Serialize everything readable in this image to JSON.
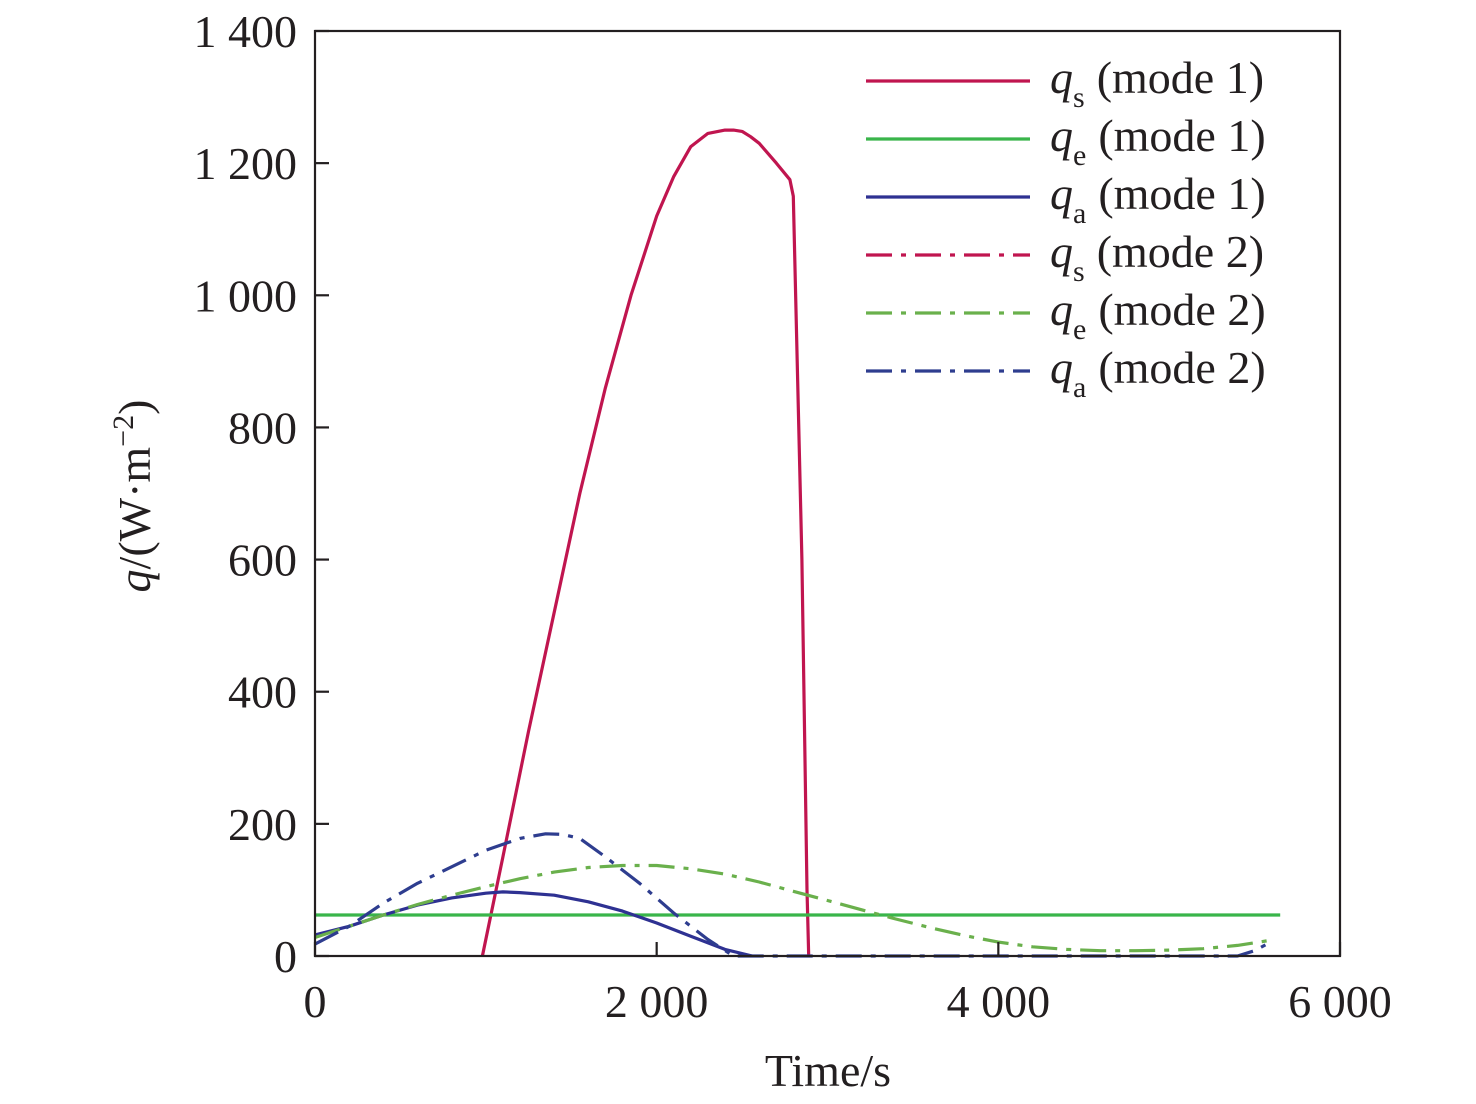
{
  "chart_data": {
    "type": "line",
    "xlabel": "Time/s",
    "ylabel": {
      "symbol": "q",
      "unit": "/(W·m",
      "exp": "−2",
      "close": ")"
    },
    "xlim": [
      0,
      6000
    ],
    "ylim": [
      0,
      1400
    ],
    "x_ticks": [
      0,
      2000,
      4000,
      6000
    ],
    "x_tick_labels": [
      "0",
      "2 000",
      "4 000",
      "6 000"
    ],
    "y_ticks": [
      0,
      200,
      400,
      600,
      800,
      1000,
      1200,
      1400
    ],
    "y_tick_labels": [
      "0",
      "200",
      "400",
      "600",
      "800",
      "1 000",
      "1 200",
      "1 400"
    ],
    "grid": false,
    "legend_position": "top-right",
    "series": [
      {
        "name": "qs (mode 1)",
        "symbol": "q",
        "sub": "s",
        "suffix": "(mode 1)",
        "color": "#c0154f",
        "style": "solid",
        "x": [
          980,
          1100,
          1250,
          1400,
          1550,
          1700,
          1850,
          2000,
          2100,
          2200,
          2300,
          2400,
          2450,
          2500,
          2550,
          2600,
          2700,
          2780,
          2800,
          2850,
          2880,
          2890
        ],
        "y": [
          0,
          150,
          340,
          520,
          700,
          860,
          1000,
          1120,
          1180,
          1225,
          1245,
          1250,
          1250,
          1248,
          1240,
          1230,
          1200,
          1175,
          1150,
          600,
          100,
          0
        ]
      },
      {
        "name": "qe (mode 1)",
        "symbol": "q",
        "sub": "e",
        "suffix": "(mode 1)",
        "color": "#39b54a",
        "style": "solid",
        "x": [
          0,
          5650
        ],
        "y": [
          62,
          62
        ]
      },
      {
        "name": "qa (mode 1)",
        "symbol": "q",
        "sub": "a",
        "suffix": "(mode 1)",
        "color": "#2e3192",
        "style": "solid",
        "x": [
          0,
          200,
          400,
          600,
          800,
          1000,
          1100,
          1200,
          1400,
          1600,
          1800,
          2000,
          2200,
          2400,
          2560
        ],
        "y": [
          32,
          45,
          62,
          77,
          88,
          95,
          97,
          96,
          92,
          82,
          68,
          50,
          30,
          10,
          0
        ]
      },
      {
        "name": "qs (mode 2)",
        "symbol": "q",
        "sub": "s",
        "suffix": "(mode 2)",
        "color": "#c0154f",
        "style": "dashdot",
        "x": [],
        "y": []
      },
      {
        "name": "qe (mode 2)",
        "symbol": "q",
        "sub": "e",
        "suffix": "(mode 2)",
        "color": "#6ab04c",
        "style": "dashdot",
        "x": [
          0,
          200,
          400,
          600,
          800,
          1000,
          1200,
          1400,
          1600,
          1800,
          2000,
          2200,
          2400,
          2600,
          2800,
          3000,
          3200,
          3400,
          3600,
          3800,
          4000,
          4200,
          4400,
          4600,
          4800,
          5000,
          5200,
          5400,
          5600
        ],
        "y": [
          28,
          45,
          62,
          78,
          92,
          105,
          117,
          127,
          134,
          137,
          137,
          132,
          124,
          112,
          98,
          84,
          70,
          56,
          43,
          31,
          21,
          14,
          10,
          8,
          8,
          9,
          11,
          16,
          24
        ]
      },
      {
        "name": "qa (mode 2)",
        "symbol": "q",
        "sub": "a",
        "suffix": "(mode 2)",
        "color": "#2e3d8f",
        "style": "dashdot",
        "x": [
          0,
          200,
          400,
          600,
          800,
          1000,
          1200,
          1350,
          1450,
          1550,
          1700,
          1900,
          2100,
          2300,
          2450,
          5400,
          5500,
          5600
        ],
        "y": [
          18,
          45,
          80,
          110,
          135,
          160,
          178,
          185,
          184,
          178,
          150,
          110,
          65,
          25,
          0,
          0,
          8,
          22
        ]
      }
    ]
  }
}
